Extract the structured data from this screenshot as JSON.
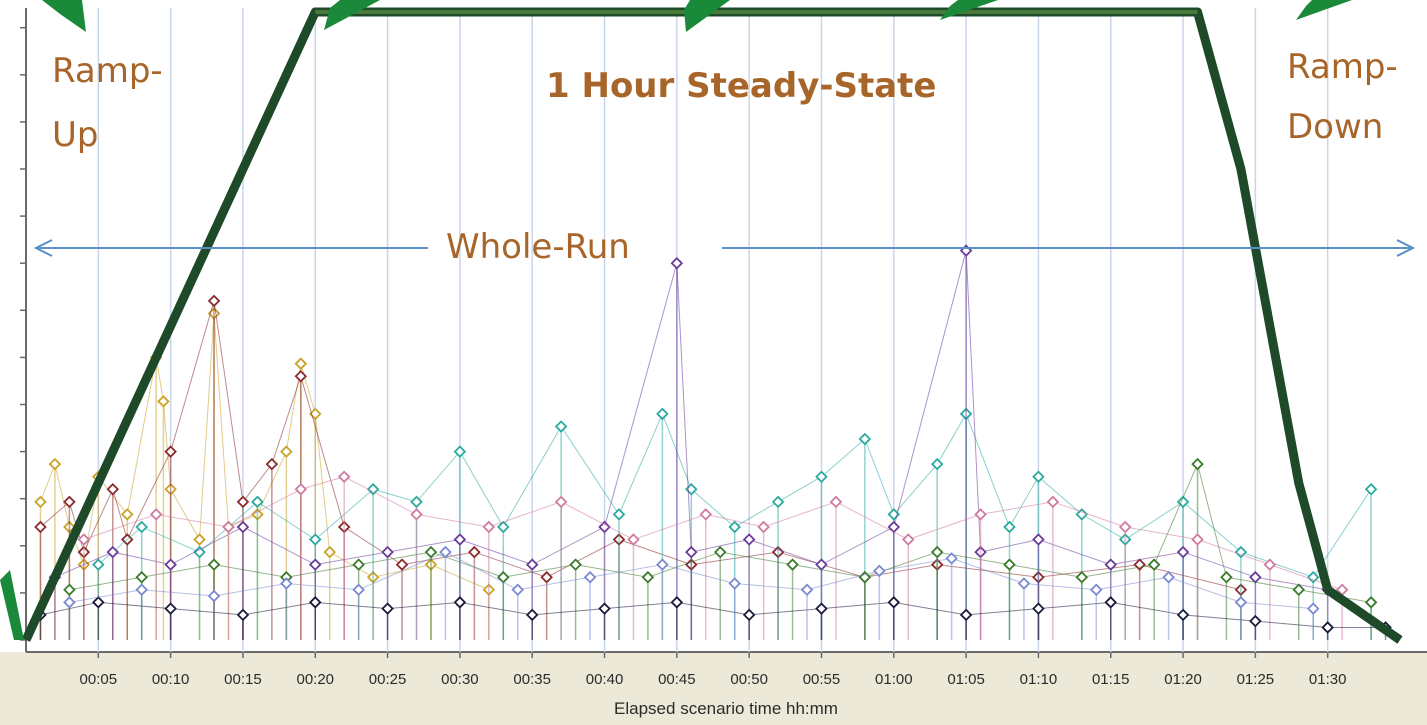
{
  "chart_data": {
    "type": "scatter",
    "title": "",
    "xlabel": "Elapsed scenario time hh:mm",
    "ylabel": "",
    "x_unit": "minutes",
    "xlim": [
      0,
      95
    ],
    "ylim": [
      0,
      100
    ],
    "x_ticks": [
      "00:05",
      "00:10",
      "00:15",
      "00:20",
      "00:25",
      "00:30",
      "00:35",
      "00:40",
      "00:45",
      "00:50",
      "00:55",
      "01:00",
      "01:05",
      "01:10",
      "01:15",
      "01:20",
      "01:25",
      "01:30"
    ],
    "grid": {
      "vertical": true,
      "horizontal": false
    },
    "colors": {
      "load_line": "#1e4a2a",
      "whole_run_arrow": "#5b8fc8",
      "annotation_text": "#a8652a",
      "steady_state_line": "#4a7a3a",
      "pointer_arrow": "#1a8a3a"
    },
    "annotations": {
      "ramp_up": [
        "Ramp-",
        "Up"
      ],
      "steady_state": "1 Hour Steady-State",
      "ramp_down": [
        "Ramp-",
        "Down"
      ],
      "whole_run": "Whole-Run"
    },
    "load_profile": {
      "name": "",
      "points": [
        [
          0,
          0
        ],
        [
          20,
          100
        ],
        [
          81,
          100
        ],
        [
          84,
          75
        ],
        [
          88,
          25
        ],
        [
          90,
          8
        ],
        [
          95,
          0
        ]
      ]
    },
    "response_time_series": [
      {
        "name": "",
        "color": "#c9a227",
        "points": [
          [
            1,
            22
          ],
          [
            2,
            28
          ],
          [
            3,
            18
          ],
          [
            4,
            12
          ],
          [
            5,
            26
          ],
          [
            7,
            20
          ],
          [
            9,
            45
          ],
          [
            9.5,
            38
          ],
          [
            10,
            24
          ],
          [
            12,
            16
          ],
          [
            13,
            52
          ],
          [
            14,
            18
          ],
          [
            16,
            20
          ],
          [
            18,
            30
          ],
          [
            19,
            44
          ],
          [
            20,
            36
          ],
          [
            21,
            14
          ],
          [
            24,
            10
          ],
          [
            28,
            12
          ],
          [
            32,
            8
          ]
        ]
      },
      {
        "name": "",
        "color": "#8a2a2a",
        "points": [
          [
            1,
            18
          ],
          [
            3,
            22
          ],
          [
            4,
            14
          ],
          [
            6,
            24
          ],
          [
            7,
            16
          ],
          [
            10,
            30
          ],
          [
            13,
            54
          ],
          [
            15,
            22
          ],
          [
            17,
            28
          ],
          [
            19,
            42
          ],
          [
            22,
            18
          ],
          [
            26,
            12
          ],
          [
            31,
            14
          ],
          [
            36,
            10
          ],
          [
            41,
            16
          ],
          [
            46,
            12
          ],
          [
            52,
            14
          ],
          [
            58,
            10
          ],
          [
            63,
            12
          ],
          [
            70,
            10
          ],
          [
            77,
            12
          ],
          [
            84,
            8
          ]
        ]
      },
      {
        "name": "",
        "color": "#2aa9a0",
        "points": [
          [
            5,
            12
          ],
          [
            8,
            18
          ],
          [
            12,
            14
          ],
          [
            16,
            22
          ],
          [
            20,
            16
          ],
          [
            24,
            24
          ],
          [
            27,
            22
          ],
          [
            30,
            30
          ],
          [
            33,
            18
          ],
          [
            37,
            34
          ],
          [
            41,
            20
          ],
          [
            44,
            36
          ],
          [
            46,
            24
          ],
          [
            49,
            18
          ],
          [
            52,
            22
          ],
          [
            55,
            26
          ],
          [
            58,
            32
          ],
          [
            60,
            20
          ],
          [
            63,
            28
          ],
          [
            65,
            36
          ],
          [
            68,
            18
          ],
          [
            70,
            26
          ],
          [
            73,
            20
          ],
          [
            76,
            16
          ],
          [
            80,
            22
          ],
          [
            84,
            14
          ],
          [
            89,
            10
          ],
          [
            93,
            24
          ]
        ]
      },
      {
        "name": "",
        "color": "#6a3a9a",
        "points": [
          [
            2,
            10
          ],
          [
            6,
            14
          ],
          [
            10,
            12
          ],
          [
            15,
            18
          ],
          [
            20,
            12
          ],
          [
            25,
            14
          ],
          [
            30,
            16
          ],
          [
            35,
            12
          ],
          [
            40,
            18
          ],
          [
            45,
            60
          ],
          [
            46,
            14
          ],
          [
            50,
            16
          ],
          [
            55,
            12
          ],
          [
            60,
            18
          ],
          [
            65,
            62
          ],
          [
            66,
            14
          ],
          [
            70,
            16
          ],
          [
            75,
            12
          ],
          [
            80,
            14
          ],
          [
            85,
            10
          ],
          [
            90,
            8
          ]
        ]
      },
      {
        "name": "",
        "color": "#3a7a2a",
        "points": [
          [
            3,
            8
          ],
          [
            8,
            10
          ],
          [
            13,
            12
          ],
          [
            18,
            10
          ],
          [
            23,
            12
          ],
          [
            28,
            14
          ],
          [
            33,
            10
          ],
          [
            38,
            12
          ],
          [
            43,
            10
          ],
          [
            48,
            14
          ],
          [
            53,
            12
          ],
          [
            58,
            10
          ],
          [
            63,
            14
          ],
          [
            68,
            12
          ],
          [
            73,
            10
          ],
          [
            78,
            12
          ],
          [
            81,
            28
          ],
          [
            83,
            10
          ],
          [
            88,
            8
          ],
          [
            93,
            6
          ]
        ]
      },
      {
        "name": "",
        "color": "#d07aa0",
        "points": [
          [
            4,
            16
          ],
          [
            9,
            20
          ],
          [
            14,
            18
          ],
          [
            19,
            24
          ],
          [
            22,
            26
          ],
          [
            27,
            20
          ],
          [
            32,
            18
          ],
          [
            37,
            22
          ],
          [
            42,
            16
          ],
          [
            47,
            20
          ],
          [
            51,
            18
          ],
          [
            56,
            22
          ],
          [
            61,
            16
          ],
          [
            66,
            20
          ],
          [
            71,
            22
          ],
          [
            76,
            18
          ],
          [
            81,
            16
          ],
          [
            86,
            12
          ],
          [
            91,
            8
          ]
        ]
      },
      {
        "name": "",
        "color": "#1a1a3a",
        "points": [
          [
            1,
            4
          ],
          [
            5,
            6
          ],
          [
            10,
            5
          ],
          [
            15,
            4
          ],
          [
            20,
            6
          ],
          [
            25,
            5
          ],
          [
            30,
            6
          ],
          [
            35,
            4
          ],
          [
            40,
            5
          ],
          [
            45,
            6
          ],
          [
            50,
            4
          ],
          [
            55,
            5
          ],
          [
            60,
            6
          ],
          [
            65,
            4
          ],
          [
            70,
            5
          ],
          [
            75,
            6
          ],
          [
            80,
            4
          ],
          [
            85,
            3
          ],
          [
            90,
            2
          ],
          [
            94,
            2
          ]
        ]
      },
      {
        "name": "",
        "color": "#7a8ad0",
        "points": [
          [
            3,
            6
          ],
          [
            8,
            8
          ],
          [
            13,
            7
          ],
          [
            18,
            9
          ],
          [
            23,
            8
          ],
          [
            29,
            14
          ],
          [
            34,
            8
          ],
          [
            39,
            10
          ],
          [
            44,
            12
          ],
          [
            49,
            9
          ],
          [
            54,
            8
          ],
          [
            59,
            11
          ],
          [
            64,
            13
          ],
          [
            69,
            9
          ],
          [
            74,
            8
          ],
          [
            79,
            10
          ],
          [
            84,
            6
          ],
          [
            89,
            5
          ]
        ]
      }
    ]
  }
}
